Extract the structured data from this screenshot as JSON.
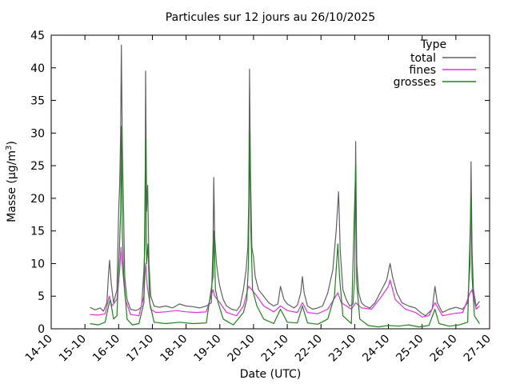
{
  "chart_data": {
    "type": "line",
    "title": "Particules sur 12 jours au 26/10/2025",
    "xlabel": "Date (UTC)",
    "ylabel_prefix": "Masse (µg/m",
    "ylabel_sup": "3",
    "ylabel_suffix": ")",
    "ylim": [
      0,
      45
    ],
    "yticks": [
      0,
      5,
      10,
      15,
      20,
      25,
      30,
      35,
      40,
      45
    ],
    "xlim_days": [
      0,
      13
    ],
    "xticks": [
      {
        "day": 0,
        "label": "14-10"
      },
      {
        "day": 1,
        "label": "15-10"
      },
      {
        "day": 2,
        "label": "16-10"
      },
      {
        "day": 3,
        "label": "17-10"
      },
      {
        "day": 4,
        "label": "18-10"
      },
      {
        "day": 5,
        "label": "19-10"
      },
      {
        "day": 6,
        "label": "20-10"
      },
      {
        "day": 7,
        "label": "21-10"
      },
      {
        "day": 8,
        "label": "22-10"
      },
      {
        "day": 9,
        "label": "23-10"
      },
      {
        "day": 10,
        "label": "24-10"
      },
      {
        "day": 11,
        "label": "25-10"
      },
      {
        "day": 12,
        "label": "26-10"
      },
      {
        "day": 13,
        "label": "27-10"
      }
    ],
    "grid": false,
    "legend": {
      "title": "Type",
      "position": "top-right"
    },
    "series": [
      {
        "name": "total",
        "color": "#606060",
        "points": [
          [
            1.15,
            3.3
          ],
          [
            1.3,
            2.9
          ],
          [
            1.45,
            3.2
          ],
          [
            1.55,
            2.7
          ],
          [
            1.65,
            4.0
          ],
          [
            1.7,
            8.5
          ],
          [
            1.73,
            10.5
          ],
          [
            1.78,
            7.0
          ],
          [
            1.85,
            4.0
          ],
          [
            1.95,
            6.0
          ],
          [
            2.0,
            18.0
          ],
          [
            2.03,
            22.0
          ],
          [
            2.06,
            30.0
          ],
          [
            2.08,
            43.5
          ],
          [
            2.11,
            28.0
          ],
          [
            2.14,
            20.0
          ],
          [
            2.18,
            8.0
          ],
          [
            2.25,
            4.5
          ],
          [
            2.35,
            3.0
          ],
          [
            2.5,
            2.8
          ],
          [
            2.6,
            3.0
          ],
          [
            2.68,
            3.4
          ],
          [
            2.75,
            9.0
          ],
          [
            2.78,
            13.0
          ],
          [
            2.8,
            39.5
          ],
          [
            2.83,
            18.0
          ],
          [
            2.86,
            22.0
          ],
          [
            2.9,
            10.0
          ],
          [
            2.95,
            5.0
          ],
          [
            3.05,
            3.5
          ],
          [
            3.2,
            3.3
          ],
          [
            3.4,
            3.5
          ],
          [
            3.6,
            3.2
          ],
          [
            3.8,
            3.8
          ],
          [
            4.0,
            3.5
          ],
          [
            4.2,
            3.4
          ],
          [
            4.4,
            3.2
          ],
          [
            4.6,
            3.5
          ],
          [
            4.75,
            4.0
          ],
          [
            4.8,
            13.0
          ],
          [
            4.82,
            23.2
          ],
          [
            4.85,
            14.0
          ],
          [
            4.9,
            10.0
          ],
          [
            4.95,
            8.0
          ],
          [
            5.0,
            6.5
          ],
          [
            5.1,
            4.5
          ],
          [
            5.2,
            3.5
          ],
          [
            5.35,
            3.0
          ],
          [
            5.5,
            2.8
          ],
          [
            5.6,
            3.5
          ],
          [
            5.7,
            6.0
          ],
          [
            5.78,
            9.0
          ],
          [
            5.83,
            12.5
          ],
          [
            5.86,
            20.0
          ],
          [
            5.88,
            39.8
          ],
          [
            5.91,
            24.0
          ],
          [
            5.95,
            12.5
          ],
          [
            6.0,
            11.0
          ],
          [
            6.05,
            8.0
          ],
          [
            6.15,
            6.0
          ],
          [
            6.3,
            5.0
          ],
          [
            6.45,
            4.0
          ],
          [
            6.6,
            3.5
          ],
          [
            6.72,
            3.8
          ],
          [
            6.8,
            6.5
          ],
          [
            6.9,
            4.5
          ],
          [
            7.0,
            3.8
          ],
          [
            7.1,
            3.5
          ],
          [
            7.2,
            3.2
          ],
          [
            7.3,
            3.6
          ],
          [
            7.4,
            5.5
          ],
          [
            7.45,
            8.0
          ],
          [
            7.5,
            5.5
          ],
          [
            7.6,
            3.5
          ],
          [
            7.75,
            3.0
          ],
          [
            7.9,
            3.2
          ],
          [
            8.05,
            3.5
          ],
          [
            8.2,
            5.5
          ],
          [
            8.35,
            9.0
          ],
          [
            8.45,
            15.0
          ],
          [
            8.52,
            21.0
          ],
          [
            8.57,
            12.0
          ],
          [
            8.65,
            6.0
          ],
          [
            8.75,
            4.5
          ],
          [
            8.85,
            3.5
          ],
          [
            8.95,
            3.8
          ],
          [
            9.0,
            8.0
          ],
          [
            9.03,
            28.7
          ],
          [
            9.06,
            10.0
          ],
          [
            9.12,
            5.5
          ],
          [
            9.2,
            4.0
          ],
          [
            9.3,
            3.5
          ],
          [
            9.45,
            3.2
          ],
          [
            9.6,
            4.0
          ],
          [
            9.8,
            6.0
          ],
          [
            9.95,
            7.5
          ],
          [
            10.05,
            10.0
          ],
          [
            10.12,
            8.0
          ],
          [
            10.25,
            5.5
          ],
          [
            10.4,
            4.0
          ],
          [
            10.6,
            3.5
          ],
          [
            10.8,
            3.2
          ],
          [
            10.95,
            2.5
          ],
          [
            11.1,
            2.0
          ],
          [
            11.2,
            2.5
          ],
          [
            11.3,
            3.0
          ],
          [
            11.38,
            6.5
          ],
          [
            11.45,
            4.0
          ],
          [
            11.6,
            2.5
          ],
          [
            11.8,
            3.0
          ],
          [
            12.0,
            3.3
          ],
          [
            12.2,
            3.0
          ],
          [
            12.35,
            4.0
          ],
          [
            12.42,
            10.0
          ],
          [
            12.45,
            25.6
          ],
          [
            12.48,
            12.0
          ],
          [
            12.52,
            6.0
          ],
          [
            12.6,
            3.5
          ],
          [
            12.7,
            4.2
          ]
        ]
      },
      {
        "name": "fines",
        "color": "#e030e0",
        "points": [
          [
            1.15,
            2.2
          ],
          [
            1.4,
            2.1
          ],
          [
            1.6,
            2.3
          ],
          [
            1.72,
            5.0
          ],
          [
            1.8,
            3.5
          ],
          [
            1.95,
            4.5
          ],
          [
            2.03,
            9.0
          ],
          [
            2.07,
            12.5
          ],
          [
            2.12,
            9.0
          ],
          [
            2.2,
            4.5
          ],
          [
            2.35,
            2.2
          ],
          [
            2.6,
            2.0
          ],
          [
            2.75,
            5.0
          ],
          [
            2.8,
            10.0
          ],
          [
            2.85,
            6.5
          ],
          [
            2.95,
            3.0
          ],
          [
            3.1,
            2.5
          ],
          [
            3.4,
            2.6
          ],
          [
            3.7,
            2.8
          ],
          [
            4.0,
            2.6
          ],
          [
            4.3,
            2.5
          ],
          [
            4.6,
            2.6
          ],
          [
            4.8,
            6.0
          ],
          [
            4.85,
            5.0
          ],
          [
            5.0,
            4.0
          ],
          [
            5.2,
            2.5
          ],
          [
            5.5,
            2.0
          ],
          [
            5.7,
            3.5
          ],
          [
            5.85,
            6.5
          ],
          [
            5.95,
            6.0
          ],
          [
            6.1,
            5.0
          ],
          [
            6.3,
            3.5
          ],
          [
            6.6,
            2.6
          ],
          [
            6.8,
            3.5
          ],
          [
            7.0,
            2.8
          ],
          [
            7.3,
            2.5
          ],
          [
            7.45,
            4.0
          ],
          [
            7.6,
            2.5
          ],
          [
            7.9,
            2.3
          ],
          [
            8.2,
            3.0
          ],
          [
            8.5,
            5.5
          ],
          [
            8.6,
            4.0
          ],
          [
            8.9,
            3.0
          ],
          [
            9.03,
            4.0
          ],
          [
            9.2,
            3.2
          ],
          [
            9.5,
            3.0
          ],
          [
            9.8,
            5.0
          ],
          [
            10.0,
            6.5
          ],
          [
            10.05,
            7.5
          ],
          [
            10.2,
            4.5
          ],
          [
            10.5,
            3.0
          ],
          [
            10.8,
            2.5
          ],
          [
            11.0,
            1.8
          ],
          [
            11.2,
            2.0
          ],
          [
            11.38,
            4.0
          ],
          [
            11.6,
            2.0
          ],
          [
            11.9,
            2.3
          ],
          [
            12.2,
            2.5
          ],
          [
            12.42,
            5.5
          ],
          [
            12.48,
            6.0
          ],
          [
            12.6,
            3.0
          ],
          [
            12.7,
            3.5
          ]
        ]
      },
      {
        "name": "grosses",
        "color": "#208020",
        "points": [
          [
            1.15,
            0.8
          ],
          [
            1.4,
            0.6
          ],
          [
            1.6,
            1.0
          ],
          [
            1.7,
            3.5
          ],
          [
            1.75,
            4.5
          ],
          [
            1.85,
            1.5
          ],
          [
            1.95,
            2.0
          ],
          [
            2.02,
            12.0
          ],
          [
            2.06,
            18.0
          ],
          [
            2.08,
            31.0
          ],
          [
            2.11,
            15.0
          ],
          [
            2.15,
            8.0
          ],
          [
            2.25,
            1.5
          ],
          [
            2.4,
            0.6
          ],
          [
            2.6,
            0.8
          ],
          [
            2.75,
            4.0
          ],
          [
            2.8,
            29.0
          ],
          [
            2.83,
            10.0
          ],
          [
            2.87,
            13.0
          ],
          [
            2.92,
            4.0
          ],
          [
            3.05,
            1.0
          ],
          [
            3.4,
            0.8
          ],
          [
            3.8,
            1.0
          ],
          [
            4.2,
            0.8
          ],
          [
            4.6,
            0.9
          ],
          [
            4.8,
            8.0
          ],
          [
            4.83,
            15.0
          ],
          [
            4.87,
            6.0
          ],
          [
            4.95,
            4.0
          ],
          [
            5.1,
            1.5
          ],
          [
            5.4,
            0.6
          ],
          [
            5.7,
            2.5
          ],
          [
            5.8,
            4.5
          ],
          [
            5.85,
            10.0
          ],
          [
            5.88,
            30.0
          ],
          [
            5.92,
            15.0
          ],
          [
            5.97,
            6.0
          ],
          [
            6.1,
            3.5
          ],
          [
            6.3,
            1.5
          ],
          [
            6.6,
            0.8
          ],
          [
            6.8,
            3.0
          ],
          [
            7.0,
            1.0
          ],
          [
            7.3,
            0.9
          ],
          [
            7.45,
            3.5
          ],
          [
            7.6,
            0.9
          ],
          [
            7.9,
            0.7
          ],
          [
            8.2,
            1.5
          ],
          [
            8.4,
            5.0
          ],
          [
            8.5,
            13.0
          ],
          [
            8.55,
            8.0
          ],
          [
            8.65,
            2.0
          ],
          [
            8.9,
            0.8
          ],
          [
            9.03,
            25.0
          ],
          [
            9.06,
            7.0
          ],
          [
            9.15,
            1.5
          ],
          [
            9.4,
            0.5
          ],
          [
            9.7,
            0.3
          ],
          [
            10.0,
            0.5
          ],
          [
            10.3,
            0.4
          ],
          [
            10.6,
            0.6
          ],
          [
            10.9,
            0.3
          ],
          [
            11.2,
            0.5
          ],
          [
            11.38,
            3.0
          ],
          [
            11.5,
            0.8
          ],
          [
            11.8,
            0.4
          ],
          [
            12.1,
            0.6
          ],
          [
            12.35,
            1.0
          ],
          [
            12.45,
            20.0
          ],
          [
            12.48,
            8.0
          ],
          [
            12.55,
            2.0
          ],
          [
            12.7,
            0.8
          ]
        ]
      }
    ]
  }
}
